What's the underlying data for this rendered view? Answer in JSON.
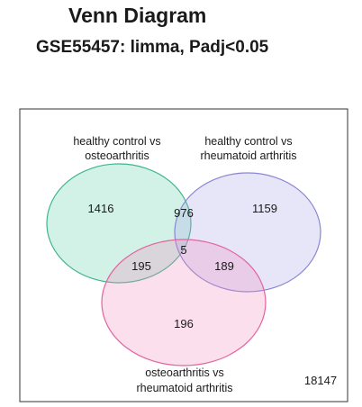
{
  "header": {
    "title": "Venn Diagram",
    "subtitle": "GSE55457: limma, Padj<0.05"
  },
  "venn": {
    "sets": [
      {
        "id": "A",
        "label_line1": "healthy control vs",
        "label_line2": "osteoarthritis",
        "fill": "#5fd0a8",
        "stroke": "#3fb58a"
      },
      {
        "id": "B",
        "label_line1": "healthy control vs",
        "label_line2": "rheumatoid arthritis",
        "fill": "#a9a6e6",
        "stroke": "#8a86d4"
      },
      {
        "id": "C",
        "label_line1": "osteoarthritis vs",
        "label_line2": "rheumatoid arthritis",
        "fill": "#f28bbd",
        "stroke": "#e2639e"
      }
    ],
    "regions": {
      "A_only": "1416",
      "B_only": "1159",
      "C_only": "196",
      "AB_only": "976",
      "AC_only": "195",
      "BC_only": "189",
      "ABC": "5"
    },
    "outside": "18147"
  }
}
